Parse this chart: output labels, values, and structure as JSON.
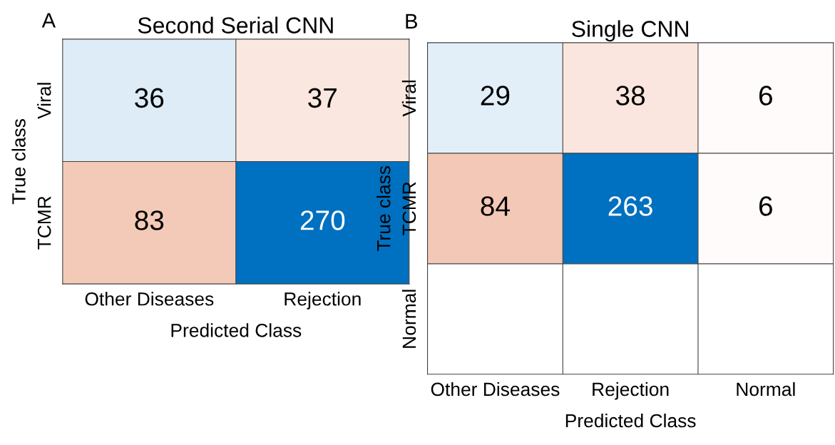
{
  "chart_data": [
    {
      "type": "heatmap",
      "title": "Second Serial CNN",
      "xlabel": "Predicted Class",
      "ylabel": "True class",
      "annotations": [
        "A"
      ],
      "categories": [
        "Other Diseases",
        "Rejection"
      ],
      "y_categories": [
        "Viral",
        "TCMR"
      ],
      "cells": [
        [
          36,
          37
        ],
        [
          83,
          270
        ]
      ],
      "data_labels": true
    },
    {
      "type": "heatmap",
      "title": "Single CNN",
      "xlabel": "Predicted Class",
      "ylabel": "True class",
      "annotations": [
        "B"
      ],
      "categories": [
        "Other Diseases",
        "Rejection",
        "Normal"
      ],
      "y_categories": [
        "Viral",
        "TCMR",
        "Normal"
      ],
      "cells": [
        [
          29,
          38,
          6
        ],
        [
          84,
          263,
          6
        ],
        [
          null,
          null,
          null
        ]
      ],
      "data_labels": true
    }
  ]
}
